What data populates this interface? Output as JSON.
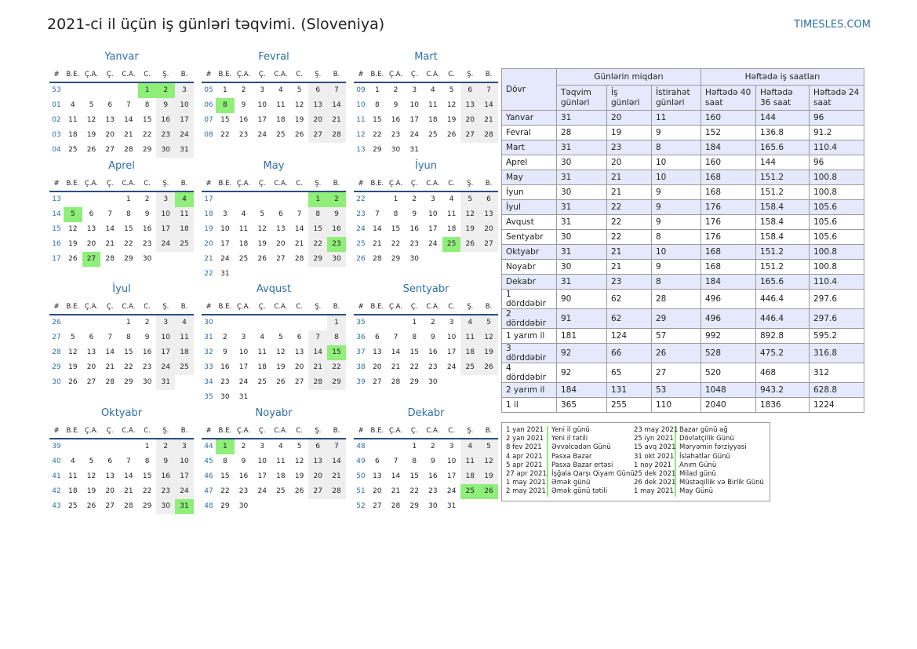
{
  "header": {
    "title": "2021-ci il üçün iş günləri təqvimi. (Sloveniya)",
    "brand": "TIMESLES.COM"
  },
  "weekday_headers": [
    "#",
    "B.E.",
    "Ç.A.",
    "Ç.",
    "C.A.",
    "C.",
    "Ş.",
    "B."
  ],
  "colors": {
    "holiday": "#90ee7a",
    "weekend": "#efefef",
    "accent": "#2e6fa7",
    "header_row": "#e6e9fb"
  },
  "months": [
    {
      "name": "Yanvar",
      "rows": [
        [
          "53",
          "",
          "",
          "",
          "",
          "1",
          "2",
          "3"
        ],
        [
          "01",
          "4",
          "5",
          "6",
          "7",
          "8",
          "9",
          "10"
        ],
        [
          "02",
          "11",
          "12",
          "13",
          "14",
          "15",
          "16",
          "17"
        ],
        [
          "03",
          "18",
          "19",
          "20",
          "21",
          "22",
          "23",
          "24"
        ],
        [
          "04",
          "25",
          "26",
          "27",
          "28",
          "29",
          "30",
          "31"
        ]
      ],
      "holidays": [
        "1",
        "2"
      ]
    },
    {
      "name": "Fevral",
      "rows": [
        [
          "05",
          "1",
          "2",
          "3",
          "4",
          "5",
          "6",
          "7"
        ],
        [
          "06",
          "8",
          "9",
          "10",
          "11",
          "12",
          "13",
          "14"
        ],
        [
          "07",
          "15",
          "16",
          "17",
          "18",
          "19",
          "20",
          "21"
        ],
        [
          "08",
          "22",
          "23",
          "24",
          "25",
          "26",
          "27",
          "28"
        ]
      ],
      "holidays": [
        "8"
      ]
    },
    {
      "name": "Mart",
      "rows": [
        [
          "09",
          "1",
          "2",
          "3",
          "4",
          "5",
          "6",
          "7"
        ],
        [
          "10",
          "8",
          "9",
          "10",
          "11",
          "12",
          "13",
          "14"
        ],
        [
          "11",
          "15",
          "16",
          "17",
          "18",
          "19",
          "20",
          "21"
        ],
        [
          "12",
          "22",
          "23",
          "24",
          "25",
          "26",
          "27",
          "28"
        ],
        [
          "13",
          "29",
          "30",
          "31",
          "",
          "",
          "",
          ""
        ]
      ],
      "holidays": []
    },
    {
      "name": "Aprel",
      "rows": [
        [
          "13",
          "",
          "",
          "",
          "1",
          "2",
          "3",
          "4"
        ],
        [
          "14",
          "5",
          "6",
          "7",
          "8",
          "9",
          "10",
          "11"
        ],
        [
          "15",
          "12",
          "13",
          "14",
          "15",
          "16",
          "17",
          "18"
        ],
        [
          "16",
          "19",
          "20",
          "21",
          "22",
          "23",
          "24",
          "25"
        ],
        [
          "17",
          "26",
          "27",
          "28",
          "29",
          "30",
          "",
          ""
        ]
      ],
      "holidays": [
        "4",
        "5",
        "27"
      ]
    },
    {
      "name": "May",
      "rows": [
        [
          "17",
          "",
          "",
          "",
          "",
          "",
          "1",
          "2"
        ],
        [
          "18",
          "3",
          "4",
          "5",
          "6",
          "7",
          "8",
          "9"
        ],
        [
          "19",
          "10",
          "11",
          "12",
          "13",
          "14",
          "15",
          "16"
        ],
        [
          "20",
          "17",
          "18",
          "19",
          "20",
          "21",
          "22",
          "23"
        ],
        [
          "21",
          "24",
          "25",
          "26",
          "27",
          "28",
          "29",
          "30"
        ],
        [
          "22",
          "31",
          "",
          "",
          "",
          "",
          "",
          ""
        ]
      ],
      "holidays": [
        "1",
        "2",
        "23"
      ]
    },
    {
      "name": "İyun",
      "rows": [
        [
          "22",
          "",
          "1",
          "2",
          "3",
          "4",
          "5",
          "6"
        ],
        [
          "23",
          "7",
          "8",
          "9",
          "10",
          "11",
          "12",
          "13"
        ],
        [
          "24",
          "14",
          "15",
          "16",
          "17",
          "18",
          "19",
          "20"
        ],
        [
          "25",
          "21",
          "22",
          "23",
          "24",
          "25",
          "26",
          "27"
        ],
        [
          "26",
          "28",
          "29",
          "30",
          "",
          "",
          "",
          ""
        ]
      ],
      "holidays": [
        "25"
      ]
    },
    {
      "name": "İyul",
      "rows": [
        [
          "26",
          "",
          "",
          "",
          "1",
          "2",
          "3",
          "4"
        ],
        [
          "27",
          "5",
          "6",
          "7",
          "8",
          "9",
          "10",
          "11"
        ],
        [
          "28",
          "12",
          "13",
          "14",
          "15",
          "16",
          "17",
          "18"
        ],
        [
          "29",
          "19",
          "20",
          "21",
          "22",
          "23",
          "24",
          "25"
        ],
        [
          "30",
          "26",
          "27",
          "28",
          "29",
          "30",
          "31",
          ""
        ]
      ],
      "holidays": []
    },
    {
      "name": "Avqust",
      "rows": [
        [
          "30",
          "",
          "",
          "",
          "",
          "",
          "",
          "1"
        ],
        [
          "31",
          "2",
          "3",
          "4",
          "5",
          "6",
          "7",
          "8"
        ],
        [
          "32",
          "9",
          "10",
          "11",
          "12",
          "13",
          "14",
          "15"
        ],
        [
          "33",
          "16",
          "17",
          "18",
          "19",
          "20",
          "21",
          "22"
        ],
        [
          "34",
          "23",
          "24",
          "25",
          "26",
          "27",
          "28",
          "29"
        ],
        [
          "35",
          "30",
          "31",
          "",
          "",
          "",
          "",
          ""
        ]
      ],
      "holidays": [
        "15"
      ]
    },
    {
      "name": "Sentyabr",
      "rows": [
        [
          "35",
          "",
          "",
          "1",
          "2",
          "3",
          "4",
          "5"
        ],
        [
          "36",
          "6",
          "7",
          "8",
          "9",
          "10",
          "11",
          "12"
        ],
        [
          "37",
          "13",
          "14",
          "15",
          "16",
          "17",
          "18",
          "19"
        ],
        [
          "38",
          "20",
          "21",
          "22",
          "23",
          "24",
          "25",
          "26"
        ],
        [
          "39",
          "27",
          "28",
          "29",
          "30",
          "",
          "",
          ""
        ]
      ],
      "holidays": []
    },
    {
      "name": "Oktyabr",
      "rows": [
        [
          "39",
          "",
          "",
          "",
          "",
          "1",
          "2",
          "3"
        ],
        [
          "40",
          "4",
          "5",
          "6",
          "7",
          "8",
          "9",
          "10"
        ],
        [
          "41",
          "11",
          "12",
          "13",
          "14",
          "15",
          "16",
          "17"
        ],
        [
          "42",
          "18",
          "19",
          "20",
          "21",
          "22",
          "23",
          "24"
        ],
        [
          "43",
          "25",
          "26",
          "27",
          "28",
          "29",
          "30",
          "31"
        ]
      ],
      "holidays": [
        "31"
      ]
    },
    {
      "name": "Noyabr",
      "rows": [
        [
          "44",
          "1",
          "2",
          "3",
          "4",
          "5",
          "6",
          "7"
        ],
        [
          "45",
          "8",
          "9",
          "10",
          "11",
          "12",
          "13",
          "14"
        ],
        [
          "46",
          "15",
          "16",
          "17",
          "18",
          "19",
          "20",
          "21"
        ],
        [
          "47",
          "22",
          "23",
          "24",
          "25",
          "26",
          "27",
          "28"
        ],
        [
          "48",
          "29",
          "30",
          "",
          "",
          "",
          "",
          ""
        ]
      ],
      "holidays": [
        "1"
      ]
    },
    {
      "name": "Dekabr",
      "rows": [
        [
          "48",
          "",
          "",
          "1",
          "2",
          "3",
          "4",
          "5"
        ],
        [
          "49",
          "6",
          "7",
          "8",
          "9",
          "10",
          "11",
          "12"
        ],
        [
          "50",
          "13",
          "14",
          "15",
          "16",
          "17",
          "18",
          "19"
        ],
        [
          "51",
          "20",
          "21",
          "22",
          "23",
          "24",
          "25",
          "26"
        ],
        [
          "52",
          "27",
          "28",
          "29",
          "30",
          "31",
          "",
          ""
        ]
      ],
      "holidays": [
        "25",
        "26"
      ]
    }
  ],
  "stats": {
    "col_period": "Dövr",
    "group_days": "Günlərin miqdarı",
    "group_hours": "Həftədə iş saatları",
    "cols": [
      "Təqvim günləri",
      "İş günləri",
      "İstirahət günləri",
      "Həftədə 40 saat",
      "Həftədə 36 saat",
      "Həftədə 24 saat"
    ],
    "rows": [
      [
        "Yanvar",
        "31",
        "20",
        "11",
        "160",
        "144",
        "96"
      ],
      [
        "Fevral",
        "28",
        "19",
        "9",
        "152",
        "136.8",
        "91.2"
      ],
      [
        "Mart",
        "31",
        "23",
        "8",
        "184",
        "165.6",
        "110.4"
      ],
      [
        "Aprel",
        "30",
        "20",
        "10",
        "160",
        "144",
        "96"
      ],
      [
        "May",
        "31",
        "21",
        "10",
        "168",
        "151.2",
        "100.8"
      ],
      [
        "İyun",
        "30",
        "21",
        "9",
        "168",
        "151.2",
        "100.8"
      ],
      [
        "İyul",
        "31",
        "22",
        "9",
        "176",
        "158.4",
        "105.6"
      ],
      [
        "Avqust",
        "31",
        "22",
        "9",
        "176",
        "158.4",
        "105.6"
      ],
      [
        "Sentyabr",
        "30",
        "22",
        "8",
        "176",
        "158.4",
        "105.6"
      ],
      [
        "Oktyabr",
        "31",
        "21",
        "10",
        "168",
        "151.2",
        "100.8"
      ],
      [
        "Noyabr",
        "30",
        "21",
        "9",
        "168",
        "151.2",
        "100.8"
      ],
      [
        "Dekabr",
        "31",
        "23",
        "8",
        "184",
        "165.6",
        "110.4"
      ],
      [
        "1 dörddəbir",
        "90",
        "62",
        "28",
        "496",
        "446.4",
        "297.6"
      ],
      [
        "2 dörddəbir",
        "91",
        "62",
        "29",
        "496",
        "446.4",
        "297.6"
      ],
      [
        "1 yarım il",
        "181",
        "124",
        "57",
        "992",
        "892.8",
        "595.2"
      ],
      [
        "3 dörddəbir",
        "92",
        "66",
        "26",
        "528",
        "475.2",
        "316.8"
      ],
      [
        "4 dörddəbir",
        "92",
        "65",
        "27",
        "520",
        "468",
        "312"
      ],
      [
        "2 yarım il",
        "184",
        "131",
        "53",
        "1048",
        "943.2",
        "628.8"
      ],
      [
        "1 il",
        "365",
        "255",
        "110",
        "2040",
        "1836",
        "1224"
      ]
    ],
    "highlight_rows": [
      0,
      2,
      4,
      6,
      9,
      11,
      13,
      15,
      17
    ]
  },
  "holidays_list": [
    [
      [
        "1 yan 2021",
        "Yeni il günü"
      ],
      [
        "2 yan 2021",
        "Yeni il tətili"
      ],
      [
        "8 fev 2021",
        "Əvvəlcədən Günü"
      ],
      [
        "4 apr 2021",
        "Pasxa Bazar"
      ],
      [
        "5 apr 2021",
        "Pasxa Bazar ertəsi"
      ],
      [
        "27 apr 2021",
        "İşğala Qarşı Qiyam Günü"
      ],
      [
        "1 may 2021",
        "Əmək günü"
      ],
      [
        "2 may 2021",
        "Əmək günü tətili"
      ]
    ],
    [
      [
        "23 may 2021",
        "Bazar günü ağ"
      ],
      [
        "25 iyn 2021",
        "Dövlətçilik Günü"
      ],
      [
        "15 avq 2021",
        "Məryəmin fərziyyəsi"
      ],
      [
        "31 okt 2021",
        "İslahatlar Günü"
      ],
      [
        "1 noy 2021",
        "Anım Günü"
      ],
      [
        "25 dek 2021",
        "Milad günü"
      ],
      [
        "26 dek 2021",
        "Müstəqillik və Birlik Günü"
      ],
      [
        "1 may 2021",
        "May Günü"
      ]
    ]
  ]
}
